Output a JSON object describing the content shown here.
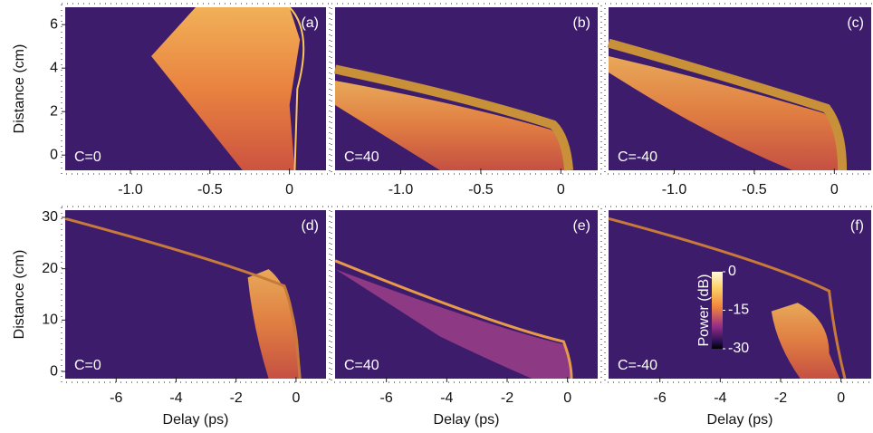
{
  "chart_data": [
    {
      "type": "heatmap",
      "label": "(a)",
      "annotation": "C=0",
      "ylabel": "Distance (cm)",
      "xlim": [
        -1.41,
        0.23
      ],
      "xticks": [
        {
          "value": -1,
          "label": "-1.0"
        },
        -0.5,
        0
      ],
      "ylim": [
        -0.7,
        6.8
      ],
      "yticks": [
        0,
        2,
        4,
        6
      ]
    },
    {
      "type": "heatmap",
      "label": "(b)",
      "annotation": "C=40",
      "xlim": [
        -1.41,
        0.23
      ],
      "xticks": [
        {
          "value": -1,
          "label": "-1.0"
        },
        -0.5,
        0
      ],
      "ylim": [
        -0.7,
        6.8
      ]
    },
    {
      "type": "heatmap",
      "label": "(c)",
      "annotation": "C=-40",
      "xlim": [
        -1.41,
        0.23
      ],
      "xticks": [
        {
          "value": -1,
          "label": "-1.0"
        },
        -0.5,
        0
      ],
      "ylim": [
        -0.7,
        6.8
      ]
    },
    {
      "type": "heatmap",
      "label": "(d)",
      "annotation": "C=0",
      "ylabel": "Distance (cm)",
      "xlabel": "Delay (ps)",
      "xlim": [
        -7.7,
        1
      ],
      "xticks": [
        -6,
        -4,
        -2,
        0
      ],
      "ylim": [
        -1.4,
        31.4
      ],
      "yticks": [
        0,
        10,
        20,
        30
      ]
    },
    {
      "type": "heatmap",
      "label": "(e)",
      "annotation": "C=40",
      "xlabel": "Delay (ps)",
      "xlim": [
        -7.7,
        1
      ],
      "xticks": [
        -6,
        -4,
        -2,
        0
      ],
      "ylim": [
        -1.4,
        31.4
      ]
    },
    {
      "type": "heatmap",
      "label": "(f)",
      "annotation": "C=-40",
      "xlabel": "Delay (ps)",
      "xlim": [
        -7.7,
        1
      ],
      "xticks": [
        -6,
        -4,
        -2,
        0
      ],
      "ylim": [
        -1.4,
        31.4
      ],
      "colorbar": {
        "label": "Power (dB)",
        "lim": [
          -30,
          0
        ],
        "ticks": [
          0,
          -15,
          -30
        ]
      }
    }
  ]
}
